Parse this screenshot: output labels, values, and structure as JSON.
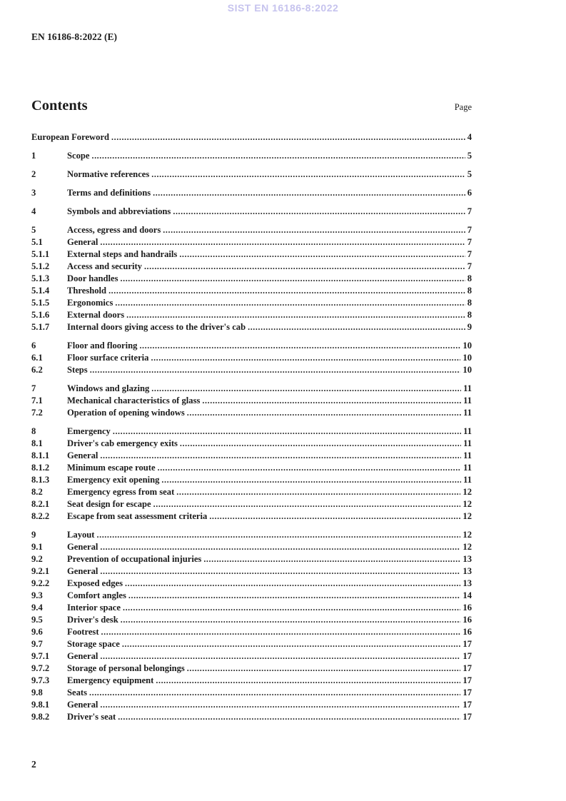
{
  "watermark": "SIST EN 16186-8:2022",
  "doc_ref": "EN 16186-8:2022 (E)",
  "contents_header": {
    "title": "Contents",
    "page_label": "Page"
  },
  "toc_groups": [
    {
      "entries": [
        {
          "num": "",
          "title": "European Foreword",
          "page": "4"
        }
      ]
    },
    {
      "entries": [
        {
          "num": "1",
          "title": "Scope",
          "page": "5"
        }
      ]
    },
    {
      "entries": [
        {
          "num": "2",
          "title": "Normative references",
          "page": "5"
        }
      ]
    },
    {
      "entries": [
        {
          "num": "3",
          "title": "Terms and definitions",
          "page": "6"
        }
      ]
    },
    {
      "entries": [
        {
          "num": "4",
          "title": "Symbols and abbreviations",
          "page": "7"
        }
      ]
    },
    {
      "entries": [
        {
          "num": "5",
          "title": "Access, egress and doors",
          "page": "7"
        },
        {
          "num": "5.1",
          "title": "General",
          "page": "7"
        },
        {
          "num": "5.1.1",
          "title": "External steps and handrails",
          "page": "7"
        },
        {
          "num": "5.1.2",
          "title": "Access and security",
          "page": "7"
        },
        {
          "num": "5.1.3",
          "title": "Door handles",
          "page": "8"
        },
        {
          "num": "5.1.4",
          "title": "Threshold",
          "page": "8"
        },
        {
          "num": "5.1.5",
          "title": "Ergonomics",
          "page": "8"
        },
        {
          "num": "5.1.6",
          "title": "External doors",
          "page": "8"
        },
        {
          "num": "5.1.7",
          "title": "Internal doors giving access to the driver's cab",
          "page": "9"
        }
      ]
    },
    {
      "entries": [
        {
          "num": "6",
          "title": "Floor and flooring",
          "page": "10"
        },
        {
          "num": "6.1",
          "title": "Floor surface criteria",
          "page": "10"
        },
        {
          "num": "6.2",
          "title": "Steps",
          "page": "10"
        }
      ]
    },
    {
      "entries": [
        {
          "num": "7",
          "title": "Windows and glazing",
          "page": "11"
        },
        {
          "num": "7.1",
          "title": "Mechanical characteristics of glass",
          "page": "11"
        },
        {
          "num": "7.2",
          "title": "Operation of opening windows",
          "page": "11"
        }
      ]
    },
    {
      "entries": [
        {
          "num": "8",
          "title": "Emergency",
          "page": "11"
        },
        {
          "num": "8.1",
          "title": "Driver's cab emergency exits",
          "page": "11"
        },
        {
          "num": "8.1.1",
          "title": "General",
          "page": "11"
        },
        {
          "num": "8.1.2",
          "title": "Minimum escape route",
          "page": "11"
        },
        {
          "num": "8.1.3",
          "title": "Emergency exit opening",
          "page": "11"
        },
        {
          "num": "8.2",
          "title": "Emergency egress from seat",
          "page": "12"
        },
        {
          "num": "8.2.1",
          "title": "Seat design for escape",
          "page": "12"
        },
        {
          "num": "8.2.2",
          "title": "Escape from seat assessment criteria",
          "page": "12"
        }
      ]
    },
    {
      "entries": [
        {
          "num": "9",
          "title": "Layout",
          "page": "12"
        },
        {
          "num": "9.1",
          "title": "General",
          "page": "12"
        },
        {
          "num": "9.2",
          "title": "Prevention of occupational injuries",
          "page": "13"
        },
        {
          "num": "9.2.1",
          "title": "General",
          "page": "13"
        },
        {
          "num": "9.2.2",
          "title": "Exposed edges",
          "page": "13"
        },
        {
          "num": "9.3",
          "title": "Comfort angles",
          "page": "14"
        },
        {
          "num": "9.4",
          "title": "Interior space",
          "page": "16"
        },
        {
          "num": "9.5",
          "title": "Driver's desk",
          "page": "16"
        },
        {
          "num": "9.6",
          "title": "Footrest",
          "page": "16"
        },
        {
          "num": "9.7",
          "title": "Storage space",
          "page": "17"
        },
        {
          "num": "9.7.1",
          "title": "General",
          "page": "17"
        },
        {
          "num": "9.7.2",
          "title": "Storage of personal belongings",
          "page": "17"
        },
        {
          "num": "9.7.3",
          "title": "Emergency equipment",
          "page": "17"
        },
        {
          "num": "9.8",
          "title": "Seats",
          "page": "17"
        },
        {
          "num": "9.8.1",
          "title": "General",
          "page": "17"
        },
        {
          "num": "9.8.2",
          "title": "Driver's seat",
          "page": "17"
        }
      ]
    }
  ],
  "footer": {
    "page_number": "2"
  },
  "colors": {
    "watermark": "#c6c3ee",
    "text": "#1b1b1b"
  }
}
